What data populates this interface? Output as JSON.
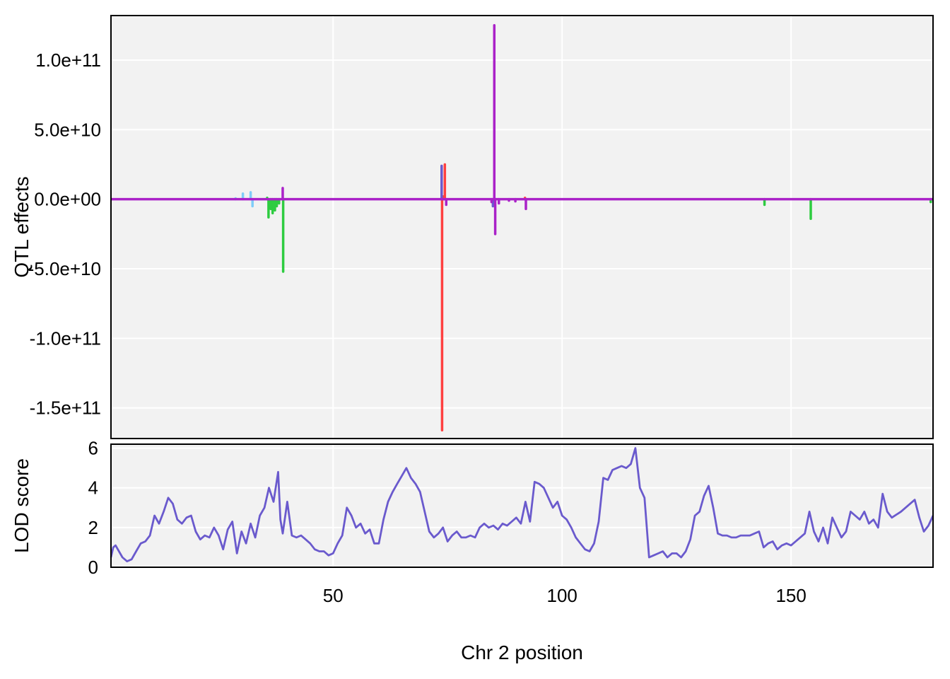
{
  "chart_data": [
    {
      "type": "line",
      "ylabel": "QTL effects",
      "xlim": [
        1.5,
        181
      ],
      "ylim": [
        -172000000000,
        132000000000
      ],
      "x_ticks": [
        50,
        100,
        150
      ],
      "y_ticks": [
        {
          "value": 100000000000,
          "label": "1.0e+11"
        },
        {
          "value": 50000000000,
          "label": "5.0e+10"
        },
        {
          "value": 0,
          "label": "0.0e+00"
        },
        {
          "value": -50000000000,
          "label": "-5.0e+10"
        },
        {
          "value": -100000000000,
          "label": "-1.0e+11"
        },
        {
          "value": -150000000000,
          "label": "-1.5e+11"
        }
      ],
      "grid": true,
      "baseline_color": "#AA22C8",
      "series": [
        {
          "color": "#7FCDF8",
          "spikes": [
            [
              28.7,
              600000000
            ],
            [
              30.3,
              4000000000
            ],
            [
              32.0,
              5000000000
            ],
            [
              32.4,
              -5000000000
            ]
          ]
        },
        {
          "color": "#2ECC40",
          "spikes": [
            [
              35.6,
              1000000000
            ],
            [
              35.9,
              -13000000000
            ],
            [
              36.4,
              -7000000000
            ],
            [
              36.8,
              -10000000000
            ],
            [
              37.3,
              -8000000000
            ],
            [
              37.7,
              -5000000000
            ],
            [
              38.2,
              -3000000000
            ],
            [
              39.1,
              -52000000000
            ],
            [
              144.2,
              -4000000000
            ],
            [
              154.3,
              -14000000000
            ],
            [
              180.5,
              -2000000000
            ]
          ]
        },
        {
          "color": "#FF4040",
          "spikes": [
            [
              73.8,
              -166000000000
            ],
            [
              74.4,
              25000000000
            ],
            [
              74.1,
              2000000000
            ],
            [
              91.9,
              1000000000
            ]
          ]
        },
        {
          "color": "#6A5ACD",
          "spikes": [
            [
              73.7,
              24000000000
            ],
            [
              84.9,
              -5000000000
            ]
          ]
        },
        {
          "color": "#AA22C8",
          "spikes": [
            [
              39.0,
              8000000000
            ],
            [
              74.7,
              -4000000000
            ],
            [
              84.6,
              -2000000000
            ],
            [
              85.2,
              125000000000
            ],
            [
              85.4,
              -25000000000
            ],
            [
              86.2,
              -3000000000
            ],
            [
              88.4,
              -1000000000
            ],
            [
              89.8,
              -1500000000
            ],
            [
              92.1,
              -7000000000
            ]
          ]
        }
      ]
    },
    {
      "type": "line",
      "xlabel": "Chr 2 position",
      "ylabel": "LOD score",
      "xlim": [
        1.5,
        181
      ],
      "ylim": [
        0,
        6.2
      ],
      "x_ticks": [
        50,
        100,
        150
      ],
      "y_ticks": [
        0,
        2,
        4,
        6
      ],
      "grid": true,
      "series": [
        {
          "color": "#6A5ACD",
          "points": [
            [
              1.5,
              0.5
            ],
            [
              2,
              1.0
            ],
            [
              2.5,
              1.1
            ],
            [
              3,
              0.9
            ],
            [
              4,
              0.5
            ],
            [
              5,
              0.3
            ],
            [
              6,
              0.4
            ],
            [
              7,
              0.8
            ],
            [
              8,
              1.2
            ],
            [
              9,
              1.3
            ],
            [
              10,
              1.6
            ],
            [
              11,
              2.6
            ],
            [
              12,
              2.2
            ],
            [
              13,
              2.8
            ],
            [
              14,
              3.5
            ],
            [
              15,
              3.2
            ],
            [
              16,
              2.4
            ],
            [
              17,
              2.2
            ],
            [
              18,
              2.5
            ],
            [
              19,
              2.6
            ],
            [
              20,
              1.8
            ],
            [
              21,
              1.4
            ],
            [
              22,
              1.6
            ],
            [
              23,
              1.5
            ],
            [
              24,
              2.0
            ],
            [
              25,
              1.6
            ],
            [
              26,
              0.9
            ],
            [
              27,
              1.9
            ],
            [
              28,
              2.3
            ],
            [
              29,
              0.7
            ],
            [
              30,
              1.8
            ],
            [
              31,
              1.2
            ],
            [
              32,
              2.2
            ],
            [
              33,
              1.5
            ],
            [
              34,
              2.6
            ],
            [
              35,
              3.0
            ],
            [
              36,
              4.0
            ],
            [
              37,
              3.3
            ],
            [
              38,
              4.8
            ],
            [
              38.5,
              2.4
            ],
            [
              39,
              1.7
            ],
            [
              40,
              3.3
            ],
            [
              41,
              1.6
            ],
            [
              42,
              1.5
            ],
            [
              43,
              1.6
            ],
            [
              44,
              1.4
            ],
            [
              45,
              1.2
            ],
            [
              46,
              0.9
            ],
            [
              47,
              0.8
            ],
            [
              48,
              0.8
            ],
            [
              49,
              0.6
            ],
            [
              50,
              0.7
            ],
            [
              51,
              1.2
            ],
            [
              52,
              1.6
            ],
            [
              53,
              3.0
            ],
            [
              54,
              2.6
            ],
            [
              55,
              2.0
            ],
            [
              56,
              2.2
            ],
            [
              57,
              1.7
            ],
            [
              58,
              1.9
            ],
            [
              59,
              1.2
            ],
            [
              60,
              1.2
            ],
            [
              61,
              2.4
            ],
            [
              62,
              3.3
            ],
            [
              63,
              3.8
            ],
            [
              64,
              4.2
            ],
            [
              65,
              4.6
            ],
            [
              66,
              5.0
            ],
            [
              67,
              4.5
            ],
            [
              68,
              4.2
            ],
            [
              69,
              3.8
            ],
            [
              70,
              2.8
            ],
            [
              71,
              1.8
            ],
            [
              72,
              1.5
            ],
            [
              73,
              1.7
            ],
            [
              74,
              2.0
            ],
            [
              75,
              1.3
            ],
            [
              76,
              1.6
            ],
            [
              77,
              1.8
            ],
            [
              78,
              1.5
            ],
            [
              79,
              1.5
            ],
            [
              80,
              1.6
            ],
            [
              81,
              1.5
            ],
            [
              82,
              2.0
            ],
            [
              83,
              2.2
            ],
            [
              84,
              2.0
            ],
            [
              85,
              2.1
            ],
            [
              86,
              1.9
            ],
            [
              87,
              2.2
            ],
            [
              88,
              2.1
            ],
            [
              89,
              2.3
            ],
            [
              90,
              2.5
            ],
            [
              91,
              2.2
            ],
            [
              92,
              3.3
            ],
            [
              93,
              2.3
            ],
            [
              94,
              4.3
            ],
            [
              95,
              4.2
            ],
            [
              96,
              4.0
            ],
            [
              97,
              3.5
            ],
            [
              98,
              3.0
            ],
            [
              99,
              3.3
            ],
            [
              100,
              2.6
            ],
            [
              101,
              2.4
            ],
            [
              102,
              2.0
            ],
            [
              103,
              1.5
            ],
            [
              104,
              1.2
            ],
            [
              105,
              0.9
            ],
            [
              106,
              0.8
            ],
            [
              107,
              1.2
            ],
            [
              108,
              2.3
            ],
            [
              109,
              4.5
            ],
            [
              110,
              4.4
            ],
            [
              111,
              4.9
            ],
            [
              112,
              5.0
            ],
            [
              113,
              5.1
            ],
            [
              114,
              5.0
            ],
            [
              115,
              5.2
            ],
            [
              116,
              6.0
            ],
            [
              117,
              4.0
            ],
            [
              118,
              3.5
            ],
            [
              119,
              0.5
            ],
            [
              120,
              0.6
            ],
            [
              121,
              0.7
            ],
            [
              122,
              0.8
            ],
            [
              123,
              0.5
            ],
            [
              124,
              0.7
            ],
            [
              125,
              0.7
            ],
            [
              126,
              0.5
            ],
            [
              127,
              0.8
            ],
            [
              128,
              1.4
            ],
            [
              129,
              2.6
            ],
            [
              130,
              2.8
            ],
            [
              131,
              3.6
            ],
            [
              132,
              4.1
            ],
            [
              133,
              3.0
            ],
            [
              134,
              1.7
            ],
            [
              135,
              1.6
            ],
            [
              136,
              1.6
            ],
            [
              137,
              1.5
            ],
            [
              138,
              1.5
            ],
            [
              139,
              1.6
            ],
            [
              140,
              1.6
            ],
            [
              141,
              1.6
            ],
            [
              142,
              1.7
            ],
            [
              143,
              1.8
            ],
            [
              144,
              1.0
            ],
            [
              145,
              1.2
            ],
            [
              146,
              1.3
            ],
            [
              147,
              0.9
            ],
            [
              148,
              1.1
            ],
            [
              149,
              1.2
            ],
            [
              150,
              1.1
            ],
            [
              151,
              1.3
            ],
            [
              152,
              1.5
            ],
            [
              153,
              1.7
            ],
            [
              154,
              2.8
            ],
            [
              155,
              1.8
            ],
            [
              156,
              1.3
            ],
            [
              157,
              2.0
            ],
            [
              158,
              1.2
            ],
            [
              159,
              2.5
            ],
            [
              160,
              2.0
            ],
            [
              161,
              1.5
            ],
            [
              162,
              1.8
            ],
            [
              163,
              2.8
            ],
            [
              164,
              2.6
            ],
            [
              165,
              2.4
            ],
            [
              166,
              2.8
            ],
            [
              167,
              2.2
            ],
            [
              168,
              2.4
            ],
            [
              169,
              2.0
            ],
            [
              170,
              3.7
            ],
            [
              171,
              2.8
            ],
            [
              172,
              2.5
            ],
            [
              174,
              2.8
            ],
            [
              176,
              3.2
            ],
            [
              177,
              3.4
            ],
            [
              178,
              2.5
            ],
            [
              179,
              1.8
            ],
            [
              180,
              2.1
            ],
            [
              181,
              2.6
            ]
          ]
        }
      ]
    }
  ]
}
